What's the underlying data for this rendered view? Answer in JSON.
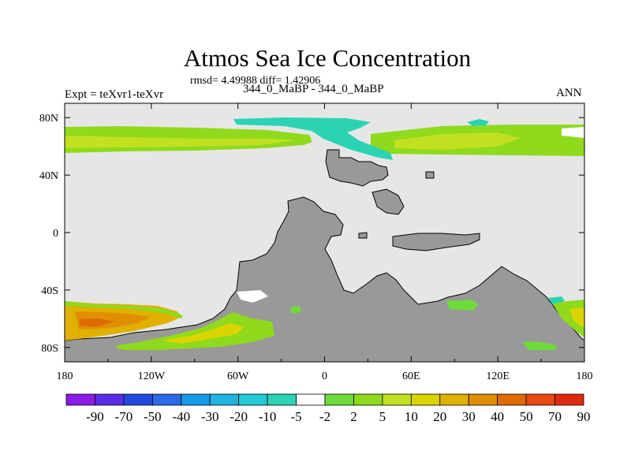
{
  "title": "Atmos Sea Ice Concentration",
  "stats": "rmsd= 4.49988 diff= 1.42906",
  "subtitle": "344_0_MaBP - 344_0_MaBP",
  "expt_label": "Expt = teXvr1-teXvr",
  "season": "ANN",
  "map": {
    "lon_range": [
      -180,
      180
    ],
    "lat_range": [
      -90,
      90
    ],
    "lon_ticks": [
      {
        "value": -180,
        "label": "180"
      },
      {
        "value": -120,
        "label": "120W"
      },
      {
        "value": -60,
        "label": "60W"
      },
      {
        "value": 0,
        "label": "0"
      },
      {
        "value": 60,
        "label": "60E"
      },
      {
        "value": 120,
        "label": "120E"
      },
      {
        "value": 180,
        "label": "180"
      }
    ],
    "lat_ticks": [
      {
        "value": 80,
        "label": "80N"
      },
      {
        "value": 40,
        "label": "40N"
      },
      {
        "value": 0,
        "label": "0"
      },
      {
        "value": -40,
        "label": "40S"
      },
      {
        "value": -80,
        "label": "80S"
      }
    ],
    "ocean_color": "#e6e6e6",
    "land_color": "#999999"
  },
  "colorbar": {
    "labels": [
      "-90",
      "-70",
      "-50",
      "-40",
      "-30",
      "-20",
      "-10",
      "-5",
      "-2",
      "2",
      "5",
      "10",
      "20",
      "30",
      "40",
      "50",
      "70",
      "90"
    ],
    "colors": [
      "#8b1be8",
      "#5a2de8",
      "#2149e0",
      "#2c6ae6",
      "#159ae8",
      "#1fb4e2",
      "#22c8d6",
      "#2bd3b4",
      "#ffffff",
      "#6ddc3a",
      "#8fda1c",
      "#c2e020",
      "#dcd400",
      "#e0b100",
      "#e08f00",
      "#e06a00",
      "#e84a10",
      "#e02a10"
    ]
  }
}
